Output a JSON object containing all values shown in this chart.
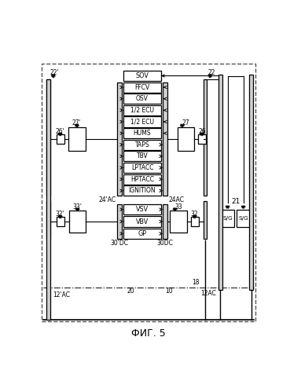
{
  "bg": "#ffffff",
  "title": "ФИГ. 5",
  "ac_boxes": [
    "FFCV",
    "OSV",
    "1/2 ECU",
    "1/2 ECU",
    "HUMS",
    "TAPS",
    "TBV",
    "LPTACC",
    "HPTACC",
    "IGNITION"
  ],
  "dc_boxes": [
    "VSV",
    "VBV",
    "GP"
  ],
  "lbl_22l": "22'",
  "lbl_26l": "26'",
  "lbl_27l": "27'",
  "lbl_32l": "32'",
  "lbl_33l": "33'",
  "lbl_27r": "27",
  "lbl_26r": "26",
  "lbl_22r": "22",
  "lbl_33r": "33",
  "lbl_32r": "32",
  "lbl_21": "21",
  "lbl_24ac_l": "24'AC",
  "lbl_24ac_r": "24AC",
  "lbl_30dc_l": "30'DC",
  "lbl_30dc_r": "30DC",
  "lbl_12ac_l": "12'AC",
  "lbl_12ac_r": "12AC",
  "lbl_18": "18",
  "lbl_20": "20",
  "lbl_10": "10"
}
